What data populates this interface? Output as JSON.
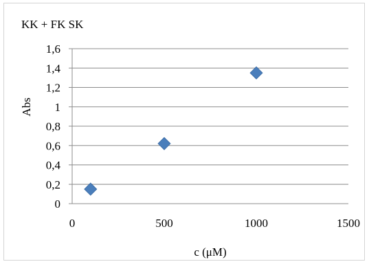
{
  "chart_data": {
    "type": "scatter",
    "title": "KK + FK SK",
    "xlabel": "c (μM)",
    "ylabel": "Abs",
    "xlim": [
      0,
      1500
    ],
    "ylim": [
      0,
      1.6
    ],
    "x_ticks": [
      "0",
      "500",
      "1000",
      "1500"
    ],
    "y_ticks": [
      "0",
      "0,2",
      "0,4",
      "0,6",
      "0,8",
      "1",
      "1,2",
      "1,4",
      "1,6"
    ],
    "grid": "horizontal",
    "legend": "none",
    "series": [
      {
        "color": "#4a7ebb",
        "marker": "diamond",
        "x": [
          100,
          500,
          1000
        ],
        "y": [
          0.15,
          0.62,
          1.35
        ]
      }
    ]
  }
}
